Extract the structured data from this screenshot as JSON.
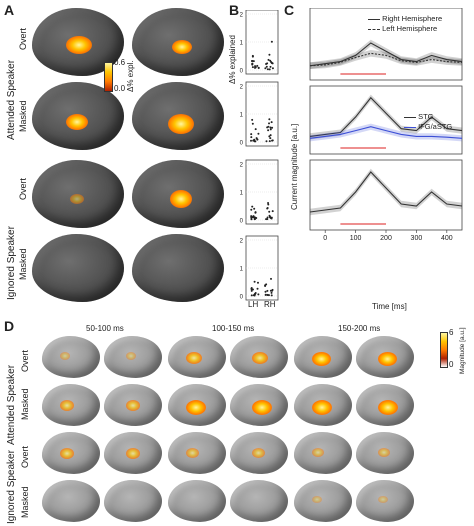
{
  "panels": {
    "a": "A",
    "b": "B",
    "c": "C",
    "d": "D"
  },
  "rows": {
    "attended": "Attended Speaker",
    "ignored": "Ignored Speaker",
    "overt": "Overt",
    "masked": "Masked"
  },
  "colorbar_a": {
    "top": "0.6",
    "bottom": "0.0",
    "label": "Δ% expl."
  },
  "colorbar_d": {
    "top": "6",
    "bottom": "0",
    "label": "Magnitude [a.u.]"
  },
  "panel_b": {
    "ylabel": "Δ% explained",
    "xticks": [
      "LH",
      "RH"
    ]
  },
  "panel_c": {
    "ylabel": "Current magnitude [a.u.]",
    "xlabel": "Time [ms]",
    "legend1": [
      "Right Hemisphere",
      "Left Hemisphere"
    ],
    "legend2": [
      "STG",
      "IFG/aSTG"
    ]
  },
  "panel_d": {
    "windows": [
      "50-100 ms",
      "100-150 ms",
      "150-200 ms"
    ]
  },
  "chart_data": [
    {
      "type": "scatter",
      "title": "",
      "ylabel": "Δ% explained",
      "categories": [
        "LH",
        "RH"
      ],
      "rows": [
        "Attended Overt",
        "Attended Masked",
        "Ignored Overt",
        "Ignored Masked"
      ],
      "yticks": [
        [
          0,
          1,
          2
        ],
        [
          0,
          1,
          2
        ],
        [
          0,
          1,
          2
        ],
        [
          0,
          1,
          2
        ]
      ]
    },
    {
      "type": "line",
      "xlabel": "Time [ms]",
      "ylabel": "Current magnitude [a.u.]",
      "xticks": [
        0,
        100,
        200,
        300,
        400
      ],
      "xlim": [
        -50,
        450
      ],
      "series": [
        {
          "name": "Right Hemisphere",
          "x": [
            -50,
            0,
            50,
            100,
            150,
            200,
            250,
            300,
            350,
            400,
            450
          ],
          "y": [
            0.2,
            0.25,
            0.3,
            0.45,
            0.75,
            0.55,
            0.35,
            0.3,
            0.45,
            0.35,
            0.3
          ]
        },
        {
          "name": "Left Hemisphere",
          "x": [
            -50,
            0,
            50,
            100,
            150,
            200,
            250,
            300,
            350,
            400,
            450
          ],
          "y": [
            0.2,
            0.22,
            0.28,
            0.4,
            0.5,
            0.45,
            0.32,
            0.28,
            0.35,
            0.3,
            0.28
          ]
        },
        {
          "name": "STG",
          "x": [
            -50,
            0,
            50,
            100,
            150,
            200,
            250,
            300,
            350,
            400,
            450
          ],
          "y": [
            0.3,
            0.35,
            0.4,
            0.8,
            1.3,
            0.9,
            0.5,
            0.45,
            0.8,
            0.5,
            0.45
          ]
        },
        {
          "name": "IFG/aSTG",
          "x": [
            -50,
            0,
            50,
            100,
            150,
            200,
            250,
            300,
            350,
            400,
            450
          ],
          "y": [
            0.25,
            0.3,
            0.35,
            0.45,
            0.55,
            0.45,
            0.35,
            0.3,
            0.3,
            0.28,
            0.25
          ]
        }
      ]
    }
  ]
}
